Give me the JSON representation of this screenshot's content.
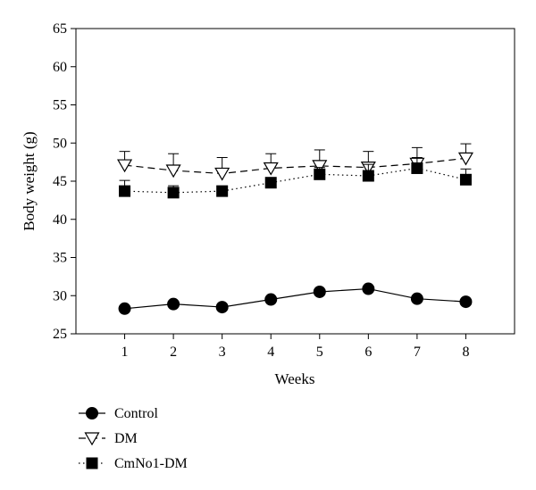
{
  "chart_data": {
    "type": "line",
    "xlabel": "Weeks",
    "ylabel": "Body weight (g)",
    "x": [
      1,
      2,
      3,
      4,
      5,
      6,
      7,
      8
    ],
    "xlim": [
      0,
      9
    ],
    "ylim": [
      25,
      65
    ],
    "xticks": [
      "1",
      "2",
      "3",
      "4",
      "5",
      "6",
      "7",
      "8"
    ],
    "yticks": [
      "25",
      "30",
      "35",
      "40",
      "45",
      "50",
      "55",
      "60",
      "65"
    ],
    "grid": false,
    "legend_position": "bottom-left",
    "series": [
      {
        "name": "Control",
        "marker": "filled-circle",
        "line_style": "solid",
        "values": [
          28.3,
          28.9,
          28.5,
          29.5,
          30.5,
          30.9,
          29.6,
          29.2
        ],
        "error": [
          0,
          0,
          0,
          0,
          0,
          0,
          0,
          0
        ]
      },
      {
        "name": "DM",
        "marker": "open-triangle-down",
        "line_style": "dashed",
        "values": [
          47.1,
          46.4,
          46.0,
          46.7,
          47.0,
          46.8,
          47.3,
          48.0
        ],
        "error": [
          1.8,
          2.2,
          2.1,
          1.9,
          2.1,
          2.1,
          2.1,
          1.9
        ]
      },
      {
        "name": "CmNo1-DM",
        "marker": "filled-square",
        "line_style": "dotted",
        "values": [
          43.7,
          43.5,
          43.7,
          44.8,
          45.9,
          45.7,
          46.7,
          45.2
        ],
        "error": [
          1.4,
          0.9,
          0.6,
          0.5,
          0.9,
          1.5,
          1.4,
          1.4
        ]
      }
    ]
  }
}
